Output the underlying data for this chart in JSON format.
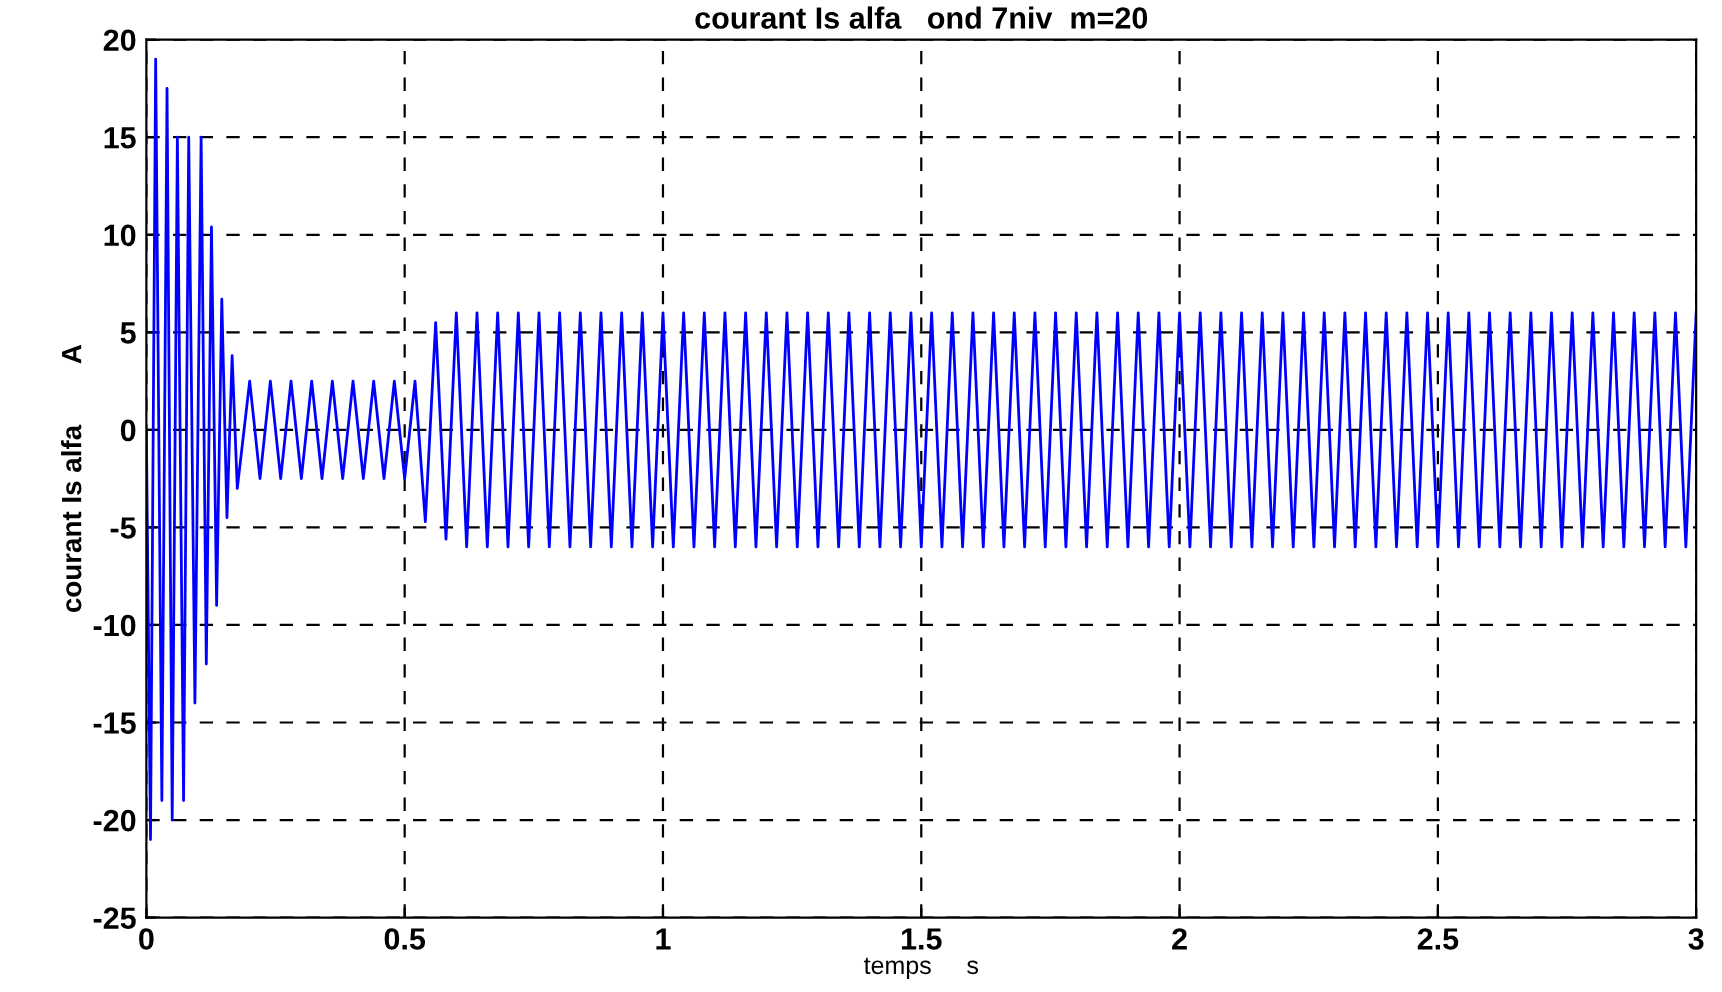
{
  "chart_data": {
    "type": "line",
    "title": "courant Is alfa   ond 7niv  m=20",
    "xlabel": "temps     s",
    "ylabel": "courant Is alfa        A",
    "xlim": [
      0,
      3
    ],
    "ylim": [
      -25,
      20
    ],
    "xticks": [
      0,
      0.5,
      1,
      1.5,
      2,
      2.5,
      3
    ],
    "yticks": [
      -25,
      -20,
      -15,
      -10,
      -5,
      0,
      5,
      10,
      15,
      20
    ],
    "grid": true,
    "line_style": "solid",
    "series": [
      {
        "color": "#0000ff",
        "x": [
          0,
          0.008,
          0.018,
          0.03,
          0.04,
          0.05,
          0.06,
          0.072,
          0.082,
          0.094,
          0.106,
          0.116,
          0.126,
          0.136,
          0.146,
          0.156,
          0.166,
          0.176,
          0.2,
          0.22,
          0.24,
          0.26,
          0.28,
          0.3,
          0.32,
          0.34,
          0.36,
          0.38,
          0.4,
          0.42,
          0.44,
          0.46,
          0.48,
          0.5,
          0.52,
          0.54,
          0.56,
          0.58,
          0.6,
          0.62,
          0.64,
          0.66,
          0.68,
          0.7,
          0.72,
          0.74,
          0.76,
          0.78,
          0.8,
          0.82,
          0.84,
          0.86,
          0.88,
          0.9,
          0.92,
          0.94,
          0.96,
          0.98,
          1.0,
          1.02,
          1.04,
          1.06,
          1.08,
          1.1,
          1.12,
          1.14,
          1.16,
          1.18,
          1.2,
          1.22,
          1.24,
          1.26,
          1.28,
          1.3,
          1.32,
          1.34,
          1.36,
          1.38,
          1.4,
          1.42,
          1.44,
          1.46,
          1.48,
          1.5,
          1.52,
          1.54,
          1.56,
          1.58,
          1.6,
          1.62,
          1.64,
          1.66,
          1.68,
          1.7,
          1.72,
          1.74,
          1.76,
          1.78,
          1.8,
          1.82,
          1.84,
          1.86,
          1.88,
          1.9,
          1.92,
          1.94,
          1.96,
          1.98,
          2.0,
          2.02,
          2.04,
          2.06,
          2.08,
          2.1,
          2.12,
          2.14,
          2.16,
          2.18,
          2.2,
          2.22,
          2.24,
          2.26,
          2.28,
          2.3,
          2.32,
          2.34,
          2.36,
          2.38,
          2.4,
          2.42,
          2.44,
          2.46,
          2.48,
          2.5,
          2.52,
          2.54,
          2.56,
          2.58,
          2.6,
          2.62,
          2.64,
          2.66,
          2.68,
          2.7,
          2.72,
          2.74,
          2.76,
          2.78,
          2.8,
          2.82,
          2.84,
          2.86,
          2.88,
          2.9,
          2.92,
          2.94,
          2.96,
          2.98,
          3.0
        ],
        "values": [
          0,
          -21,
          19,
          -19,
          17.5,
          -20,
          15,
          -19,
          15,
          -14,
          15,
          -12,
          10.4,
          -9,
          6.7,
          -4.5,
          3.8,
          -3,
          2.5,
          -2.5,
          2.5,
          -2.5,
          2.5,
          -2.5,
          2.5,
          -2.5,
          2.5,
          -2.5,
          2.5,
          -2.5,
          2.5,
          -2.5,
          2.5,
          -2.5,
          2.5,
          -4.7,
          5.5,
          -5.6,
          6,
          -6,
          6,
          -6,
          6,
          -6,
          6,
          -6,
          6,
          -6,
          6,
          -6,
          6,
          -6,
          6,
          -6,
          6,
          -6,
          6,
          -6,
          6,
          -6,
          6,
          -6,
          6,
          -6,
          6,
          -6,
          6,
          -6,
          6,
          -6,
          6,
          -6,
          6,
          -6,
          6,
          -6,
          6,
          -6,
          6,
          -6,
          6,
          -6,
          6,
          -6,
          6,
          -6,
          6,
          -6,
          6,
          -6,
          6,
          -6,
          6,
          -6,
          6,
          -6,
          6,
          -6,
          6,
          -6,
          6,
          -6,
          6,
          -6,
          6,
          -6,
          6,
          -6,
          6,
          -6,
          6,
          -6,
          6,
          -6,
          6,
          -6,
          6,
          -6,
          6,
          -6,
          6,
          -6,
          6,
          -6,
          6,
          -6,
          6,
          -6,
          6,
          -6,
          6,
          -6,
          6,
          -6,
          6,
          -6,
          6,
          -6,
          6,
          -6,
          6,
          -6,
          6,
          -6,
          6,
          -6,
          6,
          -6,
          6,
          -6,
          6,
          -6,
          6,
          -6,
          6,
          -6,
          6,
          -6,
          6
        ]
      }
    ]
  }
}
